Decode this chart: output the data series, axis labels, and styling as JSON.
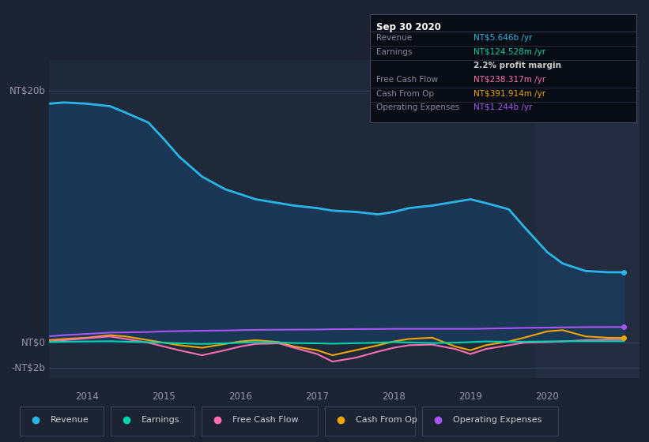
{
  "bg_color": "#1c2333",
  "plot_bg_color": "#1e2a3a",
  "highlight_bg": "#242d3f",
  "ylabel_top": "NT$20b",
  "ylabel_zero": "NT$0",
  "ylabel_neg": "-NT$2b",
  "x_labels": [
    "2014",
    "2015",
    "2016",
    "2017",
    "2018",
    "2019",
    "2020"
  ],
  "x_tick_pos": [
    2014.0,
    2015.0,
    2016.0,
    2017.0,
    2018.0,
    2019.0,
    2020.0
  ],
  "ylim": [
    -2.8,
    22.5
  ],
  "xlim": [
    2013.5,
    2021.2
  ],
  "series": {
    "Revenue": {
      "color": "#29b5e8",
      "fill_color": "#1a3a5c",
      "lw": 2.0,
      "x": [
        2013.5,
        2013.7,
        2014.0,
        2014.3,
        2014.5,
        2014.8,
        2015.0,
        2015.2,
        2015.5,
        2015.8,
        2016.0,
        2016.2,
        2016.5,
        2016.7,
        2017.0,
        2017.2,
        2017.5,
        2017.8,
        2018.0,
        2018.2,
        2018.5,
        2018.8,
        2019.0,
        2019.2,
        2019.5,
        2019.7,
        2020.0,
        2020.2,
        2020.5,
        2020.8,
        2021.0
      ],
      "y": [
        19.0,
        19.1,
        19.0,
        18.8,
        18.3,
        17.5,
        16.2,
        14.8,
        13.2,
        12.2,
        11.8,
        11.4,
        11.1,
        10.9,
        10.7,
        10.5,
        10.4,
        10.2,
        10.4,
        10.7,
        10.9,
        11.2,
        11.4,
        11.1,
        10.6,
        9.2,
        7.2,
        6.3,
        5.7,
        5.6,
        5.6
      ]
    },
    "Earnings": {
      "color": "#00d4aa",
      "lw": 1.5,
      "x": [
        2013.5,
        2013.7,
        2014.0,
        2014.3,
        2014.5,
        2014.8,
        2015.0,
        2015.2,
        2015.5,
        2015.8,
        2016.0,
        2016.2,
        2016.5,
        2016.7,
        2017.0,
        2017.2,
        2017.5,
        2017.8,
        2018.0,
        2018.2,
        2018.5,
        2018.8,
        2019.0,
        2019.2,
        2019.5,
        2019.7,
        2020.0,
        2020.2,
        2020.5,
        2020.8,
        2021.0
      ],
      "y": [
        0.05,
        0.08,
        0.1,
        0.12,
        0.08,
        0.04,
        0.0,
        -0.05,
        -0.1,
        -0.05,
        0.0,
        0.05,
        0.02,
        -0.03,
        -0.05,
        -0.08,
        -0.04,
        0.0,
        0.05,
        0.02,
        -0.03,
        0.0,
        0.05,
        0.1,
        0.07,
        0.08,
        0.1,
        0.12,
        0.12,
        0.12,
        0.12
      ]
    },
    "Free Cash Flow": {
      "color": "#ff6eb4",
      "lw": 1.5,
      "x": [
        2013.5,
        2013.7,
        2014.0,
        2014.3,
        2014.5,
        2014.8,
        2015.0,
        2015.2,
        2015.5,
        2015.8,
        2016.0,
        2016.2,
        2016.5,
        2016.7,
        2017.0,
        2017.2,
        2017.5,
        2017.8,
        2018.0,
        2018.2,
        2018.5,
        2018.8,
        2019.0,
        2019.2,
        2019.5,
        2019.7,
        2020.0,
        2020.2,
        2020.5,
        2020.8,
        2021.0
      ],
      "y": [
        0.1,
        0.2,
        0.35,
        0.5,
        0.3,
        0.0,
        -0.3,
        -0.6,
        -1.0,
        -0.6,
        -0.3,
        -0.1,
        -0.05,
        -0.4,
        -0.9,
        -1.5,
        -1.2,
        -0.7,
        -0.4,
        -0.2,
        -0.15,
        -0.5,
        -0.9,
        -0.5,
        -0.2,
        0.0,
        0.05,
        0.1,
        0.2,
        0.24,
        0.24
      ]
    },
    "Cash From Op": {
      "color": "#f0a500",
      "lw": 1.5,
      "x": [
        2013.5,
        2013.7,
        2014.0,
        2014.3,
        2014.5,
        2014.8,
        2015.0,
        2015.2,
        2015.5,
        2015.8,
        2016.0,
        2016.2,
        2016.5,
        2016.7,
        2017.0,
        2017.2,
        2017.5,
        2017.8,
        2018.0,
        2018.2,
        2018.5,
        2018.8,
        2019.0,
        2019.2,
        2019.5,
        2019.7,
        2020.0,
        2020.2,
        2020.5,
        2020.8,
        2021.0
      ],
      "y": [
        0.2,
        0.3,
        0.4,
        0.6,
        0.5,
        0.2,
        -0.0,
        -0.2,
        -0.4,
        -0.1,
        0.1,
        0.2,
        0.05,
        -0.3,
        -0.6,
        -1.0,
        -0.6,
        -0.2,
        0.1,
        0.3,
        0.4,
        -0.3,
        -0.6,
        -0.2,
        0.1,
        0.4,
        0.9,
        1.0,
        0.5,
        0.39,
        0.39
      ]
    },
    "Operating Expenses": {
      "color": "#a855f7",
      "lw": 1.5,
      "x": [
        2013.5,
        2013.7,
        2014.0,
        2014.3,
        2014.5,
        2014.8,
        2015.0,
        2015.2,
        2015.5,
        2015.8,
        2016.0,
        2016.2,
        2016.5,
        2016.7,
        2017.0,
        2017.2,
        2017.5,
        2017.8,
        2018.0,
        2018.2,
        2018.5,
        2018.8,
        2019.0,
        2019.2,
        2019.5,
        2019.7,
        2020.0,
        2020.2,
        2020.5,
        2020.8,
        2021.0
      ],
      "y": [
        0.5,
        0.6,
        0.7,
        0.8,
        0.82,
        0.85,
        0.9,
        0.92,
        0.95,
        0.97,
        1.0,
        1.02,
        1.03,
        1.04,
        1.05,
        1.07,
        1.08,
        1.09,
        1.1,
        1.1,
        1.1,
        1.1,
        1.1,
        1.12,
        1.15,
        1.18,
        1.2,
        1.22,
        1.24,
        1.244,
        1.244
      ]
    }
  },
  "highlight_x_start": 2019.85,
  "highlight_x_end": 2021.2,
  "tooltip_title": "Sep 30 2020",
  "tooltip_rows": [
    {
      "label": "Revenue",
      "value": "NT$5.646b /yr",
      "val_color": "#29b5e8"
    },
    {
      "label": "Earnings",
      "value": "NT$124.528m /yr",
      "val_color": "#00d4aa"
    },
    {
      "label": "",
      "value": "2.2% profit margin",
      "val_color": "#cccccc",
      "bold": true
    },
    {
      "label": "Free Cash Flow",
      "value": "NT$238.317m /yr",
      "val_color": "#ff6eb4"
    },
    {
      "label": "Cash From Op",
      "value": "NT$391.914m /yr",
      "val_color": "#f0a500"
    },
    {
      "label": "Operating Expenses",
      "value": "NT$1.244b /yr",
      "val_color": "#a855f7"
    }
  ],
  "legend": [
    {
      "label": "Revenue",
      "color": "#29b5e8"
    },
    {
      "label": "Earnings",
      "color": "#00d4aa"
    },
    {
      "label": "Free Cash Flow",
      "color": "#ff6eb4"
    },
    {
      "label": "Cash From Op",
      "color": "#f0a500"
    },
    {
      "label": "Operating Expenses",
      "color": "#a855f7"
    }
  ]
}
